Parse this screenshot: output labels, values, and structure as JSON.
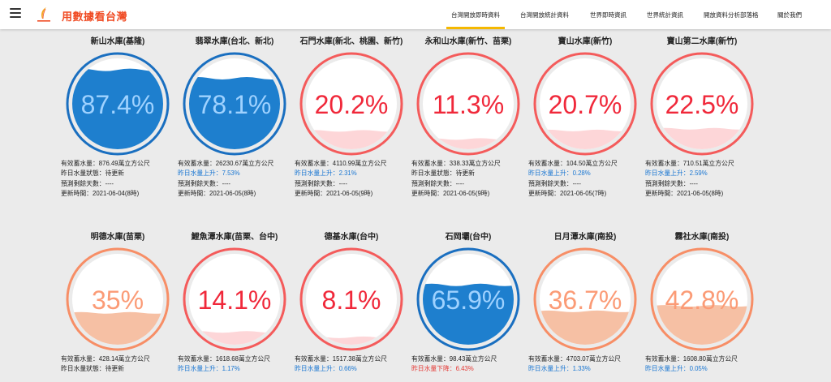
{
  "nav": {
    "brand": "用數據看台灣",
    "links": [
      "台灣開放即時資料",
      "台灣開放統計資料",
      "世界即時資訊",
      "世界統計資訊",
      "開放資料分析部落格",
      "關於我們"
    ],
    "active_index": 0
  },
  "labels": {
    "storage": "有效蓄水量：",
    "unit": "萬立方公尺",
    "days": "預測剩餘天數：",
    "updated": "更新時間："
  },
  "colors": {
    "blue_fill": "#1e7fce",
    "blue_ring": "#1a6fc0",
    "blue_text": "#9fd2ff",
    "red_ring": "#f45b5b",
    "red_text": "#f0283a",
    "red_fill": "#fdd6d8",
    "orange_ring": "#f78e66",
    "orange_text": "#fb9b76",
    "orange_fill": "#f6c0a4",
    "accent": "#f5b800",
    "brand": "#f04b23"
  },
  "reservoirs": [
    {
      "name": "新山水庫(基隆)",
      "percent": "87.4%",
      "level": 0.874,
      "theme": "blue",
      "storage": "876.49",
      "change_label": "昨日水量狀態：",
      "change_value": "待更新",
      "change_tone": "black",
      "days": "----",
      "updated": "2021-06-04(8時)"
    },
    {
      "name": "翡翠水庫(台北、新北)",
      "percent": "78.1%",
      "level": 0.781,
      "theme": "blue",
      "storage": "26230.67",
      "change_label": "昨日水量上升：",
      "change_value": "7.53%",
      "change_tone": "blue",
      "days": "----",
      "updated": "2021-06-05(8時)"
    },
    {
      "name": "石門水庫(新北、桃園、新竹)",
      "percent": "20.2%",
      "level": 0.202,
      "theme": "red",
      "storage": "4110.99",
      "change_label": "昨日水量上升：",
      "change_value": "2.31%",
      "change_tone": "blue",
      "days": "----",
      "updated": "2021-06-05(9時)"
    },
    {
      "name": "永和山水庫(新竹、苗栗)",
      "percent": "11.3%",
      "level": 0.113,
      "theme": "red",
      "storage": "338.33",
      "change_label": "昨日水量狀態：",
      "change_value": "待更新",
      "change_tone": "black",
      "days": "----",
      "updated": "2021-06-05(9時)"
    },
    {
      "name": "寶山水庫(新竹)",
      "percent": "20.7%",
      "level": 0.207,
      "theme": "red",
      "storage": "104.50",
      "change_label": "昨日水量上升：",
      "change_value": "0.28%",
      "change_tone": "blue",
      "days": "----",
      "updated": "2021-06-05(7時)"
    },
    {
      "name": "寶山第二水庫(新竹)",
      "percent": "22.5%",
      "level": 0.225,
      "theme": "red",
      "storage": "710.51",
      "change_label": "昨日水量上升：",
      "change_value": "2.59%",
      "change_tone": "blue",
      "days": "----",
      "updated": "2021-06-05(8時)"
    },
    {
      "name": "明德水庫(苗栗)",
      "percent": "35%",
      "level": 0.35,
      "theme": "orange",
      "storage": "428.14",
      "change_label": "昨日水量狀態：",
      "change_value": "待更新",
      "change_tone": "black"
    },
    {
      "name": "鯉魚潭水庫(苗栗、台中)",
      "percent": "14.1%",
      "level": 0.141,
      "theme": "red",
      "storage": "1618.68",
      "change_label": "昨日水量上升：",
      "change_value": "1.17%",
      "change_tone": "blue"
    },
    {
      "name": "德基水庫(台中)",
      "percent": "8.1%",
      "level": 0.081,
      "theme": "red",
      "storage": "1517.38",
      "change_label": "昨日水量上升：",
      "change_value": "0.66%",
      "change_tone": "blue"
    },
    {
      "name": "石岡壩(台中)",
      "percent": "65.9%",
      "level": 0.659,
      "theme": "blue",
      "storage": "98.43",
      "change_label": "昨日水量下降：",
      "change_value": "6.43%",
      "change_tone": "red"
    },
    {
      "name": "日月潭水庫(南投)",
      "percent": "36.7%",
      "level": 0.367,
      "theme": "orange",
      "storage": "4703.07",
      "change_label": "昨日水量上升：",
      "change_value": "1.33%",
      "change_tone": "blue"
    },
    {
      "name": "霧社水庫(南投)",
      "percent": "42.8%",
      "level": 0.428,
      "theme": "orange",
      "storage": "1608.80",
      "change_label": "昨日水量上升：",
      "change_value": "0.05%",
      "change_tone": "blue"
    }
  ]
}
